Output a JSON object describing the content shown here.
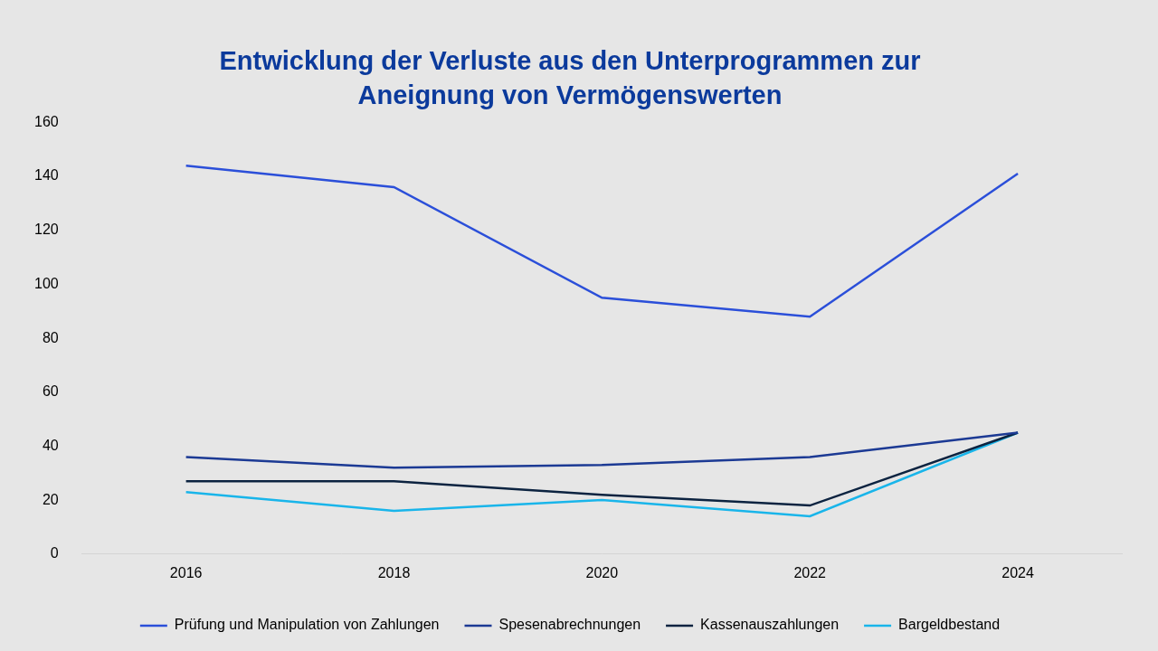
{
  "chart_data": {
    "type": "line",
    "title": [
      "Entwicklung der Verluste aus den Unterprogrammen zur",
      "Aneignung von Vermögenswerten"
    ],
    "categories": [
      "2016",
      "2018",
      "2020",
      "2022",
      "2024"
    ],
    "series": [
      {
        "name": "Prüfung und Manipulation von Zahlungen",
        "color": "#2b4fd9",
        "values": [
          144,
          136,
          95,
          88,
          141
        ]
      },
      {
        "name": "Spesenabrechnungen",
        "color": "#1c3a94",
        "values": [
          36,
          32,
          33,
          36,
          45
        ]
      },
      {
        "name": "Kassenauszahlungen",
        "color": "#0c2340",
        "values": [
          27,
          27,
          22,
          18,
          45
        ]
      },
      {
        "name": "Bargeldbestand",
        "color": "#19b5ea",
        "values": [
          23,
          16,
          20,
          14,
          45
        ]
      }
    ],
    "ylim": [
      0,
      160
    ],
    "yticks": [
      0,
      20,
      40,
      60,
      80,
      100,
      120,
      140,
      160
    ],
    "grid": false,
    "legend": "bottom"
  }
}
